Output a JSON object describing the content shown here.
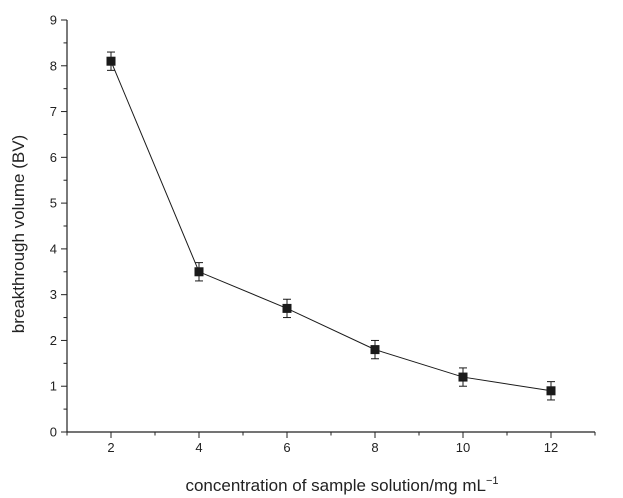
{
  "chart_data": {
    "type": "line",
    "x_label_main": "concentration of sample solution/mg mL",
    "x_label_sup": "−1",
    "ylabel": "breakthrough volume (BV)",
    "xlim": [
      1,
      13
    ],
    "ylim": [
      0,
      9
    ],
    "x_ticks": [
      2,
      4,
      6,
      8,
      10,
      12
    ],
    "y_ticks": [
      0,
      1,
      2,
      3,
      4,
      5,
      6,
      7,
      8,
      9
    ],
    "series": [
      {
        "x": [
          2,
          4,
          6,
          8,
          10,
          12
        ],
        "values": [
          8.1,
          3.5,
          2.7,
          1.8,
          1.2,
          0.9
        ],
        "errors": [
          0.2,
          0.2,
          0.2,
          0.2,
          0.2,
          0.2
        ]
      }
    ],
    "marker": "square",
    "color": "#1a1a1a",
    "grid": false,
    "legend": "none"
  }
}
